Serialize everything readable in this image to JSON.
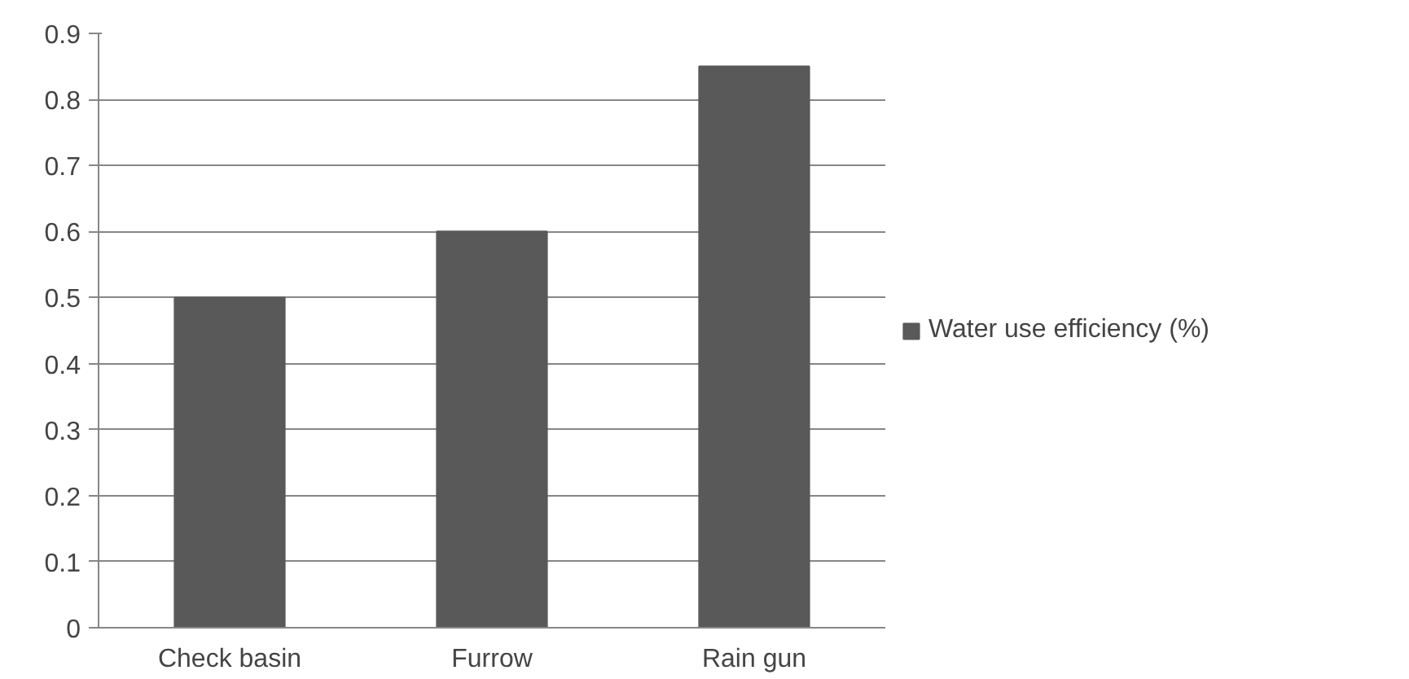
{
  "chart_data": {
    "type": "bar",
    "categories": [
      "Check basin",
      "Furrow",
      "Rain gun"
    ],
    "series": [
      {
        "name": "Water use efficiency (%)",
        "color": "#595959",
        "values": [
          0.5,
          0.6,
          0.85
        ]
      }
    ],
    "ylim": [
      0,
      0.9
    ],
    "yticks": [
      0,
      0.1,
      0.2,
      0.3,
      0.4,
      0.5,
      0.6,
      0.7,
      0.8,
      0.9
    ],
    "grid": "y",
    "legend": "right"
  }
}
